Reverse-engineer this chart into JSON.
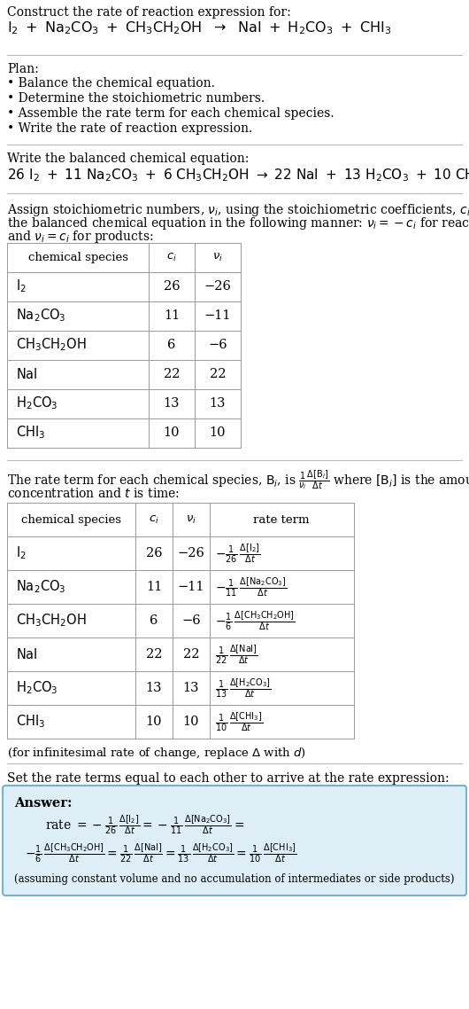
{
  "bg_color": "#ffffff",
  "text_color": "#000000",
  "species_labels": [
    "$\\mathrm{I_2}$",
    "$\\mathrm{Na_2CO_3}$",
    "$\\mathrm{CH_3CH_2OH}$",
    "$\\mathrm{NaI}$",
    "$\\mathrm{H_2CO_3}$",
    "$\\mathrm{CHI_3}$"
  ],
  "ci_vals": [
    "26",
    "11",
    "6",
    "22",
    "13",
    "10"
  ],
  "nu_vals": [
    "−26",
    "−11",
    "−6",
    "22",
    "13",
    "10"
  ],
  "rate_terms": [
    "$-\\frac{1}{26}\\,\\frac{\\Delta[\\mathrm{I_2}]}{\\Delta t}$",
    "$-\\frac{1}{11}\\,\\frac{\\Delta[\\mathrm{Na_2CO_3}]}{\\Delta t}$",
    "$-\\frac{1}{6}\\,\\frac{\\Delta[\\mathrm{CH_3CH_2OH}]}{\\Delta t}$",
    "$\\frac{1}{22}\\,\\frac{\\Delta[\\mathrm{NaI}]}{\\Delta t}$",
    "$\\frac{1}{13}\\,\\frac{\\Delta[\\mathrm{H_2CO_3}]}{\\Delta t}$",
    "$\\frac{1}{10}\\,\\frac{\\Delta[\\mathrm{CHI_3}]}{\\Delta t}$"
  ],
  "answer_box_color": "#ddeef6",
  "answer_border_color": "#7ab0cc",
  "separator_color": "#bbbbbb"
}
